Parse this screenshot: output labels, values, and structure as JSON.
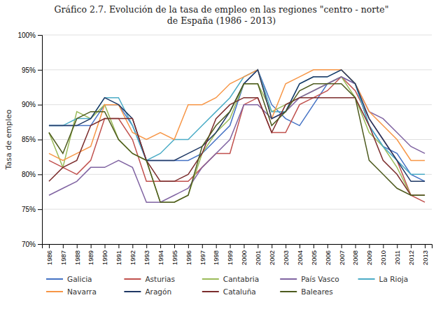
{
  "chart_data": {
    "type": "line",
    "title": "Gráfico 2.7. Evolución de la tasa de empleo en las regiones \"centro - norte\"\nde España (1986 - 2013)",
    "y_label": "Tasa de empleo",
    "x": [
      1986,
      1987,
      1988,
      1989,
      1990,
      1991,
      1992,
      1993,
      1994,
      1995,
      1996,
      1997,
      1998,
      1999,
      2000,
      2001,
      2002,
      2003,
      2004,
      2005,
      2006,
      2007,
      2008,
      2009,
      2010,
      2011,
      2012,
      2013
    ],
    "xlim": [
      1985.5,
      2013.5
    ],
    "xticks": [
      1986,
      1987,
      1988,
      1989,
      1990,
      1991,
      1992,
      1993,
      1994,
      1995,
      1996,
      1997,
      1998,
      1999,
      2000,
      2001,
      2002,
      2003,
      2004,
      2005,
      2006,
      2007,
      2008,
      2009,
      2010,
      2011,
      2012,
      2013
    ],
    "ylim": [
      70,
      100
    ],
    "yticks": [
      {
        "value": 70,
        "label": "70%"
      },
      {
        "value": 75,
        "label": "75%"
      },
      {
        "value": 80,
        "label": "80%"
      },
      {
        "value": 85,
        "label": "85%"
      },
      {
        "value": 90,
        "label": "90%"
      },
      {
        "value": 95,
        "label": "95%"
      },
      {
        "value": 100,
        "label": "100%"
      }
    ],
    "grid": "y",
    "legend": "bottom",
    "series": [
      {
        "name": "Galicia",
        "color": "#4472C4",
        "values": [
          87,
          87,
          87,
          87,
          90,
          90,
          87,
          82,
          82,
          82,
          82,
          83,
          85,
          87,
          93,
          95,
          90,
          88,
          87,
          90,
          93,
          94,
          93,
          87,
          84,
          83,
          80,
          79
        ]
      },
      {
        "name": "Asturias",
        "color": "#C0504D",
        "values": [
          82,
          81,
          80,
          82,
          88,
          88,
          85,
          79,
          79,
          79,
          79,
          81,
          83,
          83,
          90,
          91,
          86,
          86,
          90,
          91,
          92,
          94,
          92,
          88,
          85,
          82,
          77,
          76
        ]
      },
      {
        "name": "Cantabria",
        "color": "#9BBB59",
        "values": [
          86,
          81,
          89,
          88,
          90,
          85,
          83,
          82,
          76,
          76,
          77,
          83,
          86,
          88,
          93,
          93,
          89,
          90,
          91,
          92,
          93,
          94,
          91,
          86,
          84,
          81,
          77,
          77
        ]
      },
      {
        "name": "País Vasco",
        "color": "#8064A2",
        "values": [
          77,
          78,
          79,
          81,
          81,
          82,
          81,
          76,
          76,
          77,
          78,
          81,
          83,
          85,
          90,
          90,
          88,
          89,
          91,
          92,
          93,
          94,
          93,
          89,
          88,
          86,
          84,
          83
        ]
      },
      {
        "name": "La Rioja",
        "color": "#4BACC6",
        "values": [
          87,
          87,
          88,
          88,
          91,
          91,
          87,
          82,
          83,
          85,
          85,
          87,
          89,
          91,
          94,
          95,
          89,
          89,
          93,
          94,
          94,
          95,
          93,
          87,
          84,
          82,
          80,
          80
        ]
      },
      {
        "name": "Navarra",
        "color": "#F79646",
        "values": [
          83,
          82,
          83,
          84,
          90,
          90,
          86,
          85,
          86,
          85,
          90,
          90,
          91,
          93,
          94,
          95,
          88,
          93,
          94,
          95,
          95,
          95,
          93,
          89,
          87,
          85,
          82,
          82
        ]
      },
      {
        "name": "Aragón",
        "color": "#1F3864",
        "values": [
          87,
          87,
          87,
          88,
          91,
          90,
          88,
          82,
          82,
          82,
          83,
          84,
          86,
          89,
          93,
          95,
          88,
          89,
          93,
          94,
          94,
          95,
          93,
          88,
          85,
          82,
          79,
          79
        ]
      },
      {
        "name": "Cataluña",
        "color": "#7B2C2C",
        "values": [
          79,
          81,
          82,
          87,
          88,
          88,
          88,
          82,
          79,
          79,
          80,
          83,
          88,
          90,
          91,
          91,
          86,
          90,
          91,
          91,
          91,
          91,
          91,
          87,
          82,
          80,
          77,
          77
        ]
      },
      {
        "name": "Baleares",
        "color": "#4D5A1E",
        "values": [
          86,
          83,
          88,
          89,
          89,
          85,
          83,
          82,
          76,
          76,
          77,
          84,
          87,
          89,
          93,
          93,
          87,
          89,
          92,
          93,
          93,
          93,
          91,
          82,
          80,
          78,
          77,
          77
        ]
      }
    ]
  }
}
